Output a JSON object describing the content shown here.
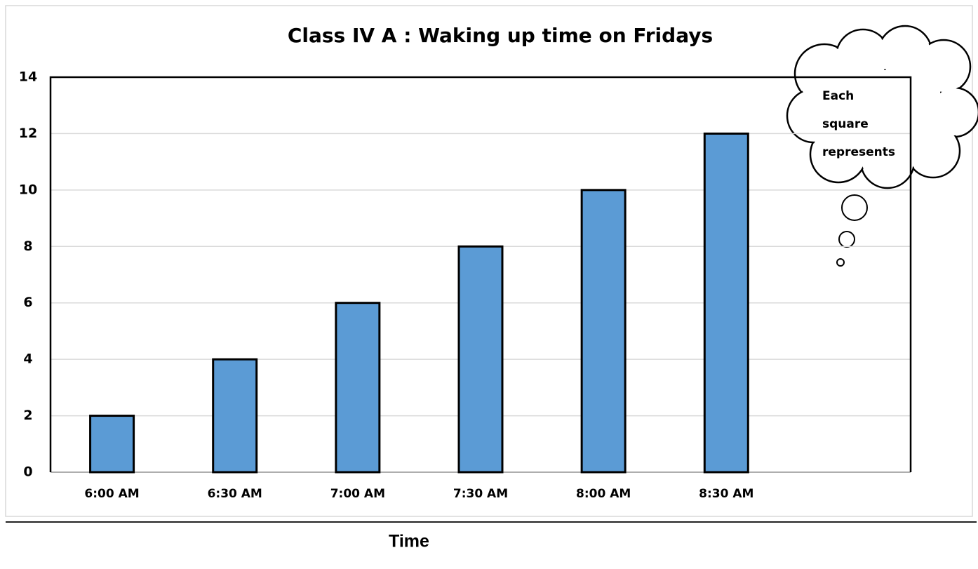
{
  "chart_data": {
    "type": "bar",
    "title": "Class IV A : Waking up time on Fridays",
    "categories": [
      "6:00 AM",
      "6:30 AM",
      "7:00 AM",
      "7:30 AM",
      "8:00 AM",
      "8:30 AM",
      null
    ],
    "values": [
      2,
      4,
      6,
      8,
      10,
      12,
      null
    ],
    "color": "#5b9bd5",
    "ylim": [
      0,
      14
    ],
    "yticks": [
      0,
      2,
      4,
      6,
      8,
      10,
      12,
      14
    ],
    "grid": true,
    "xlabel": "Time",
    "annotation": [
      "Each",
      "square",
      "represents"
    ]
  }
}
